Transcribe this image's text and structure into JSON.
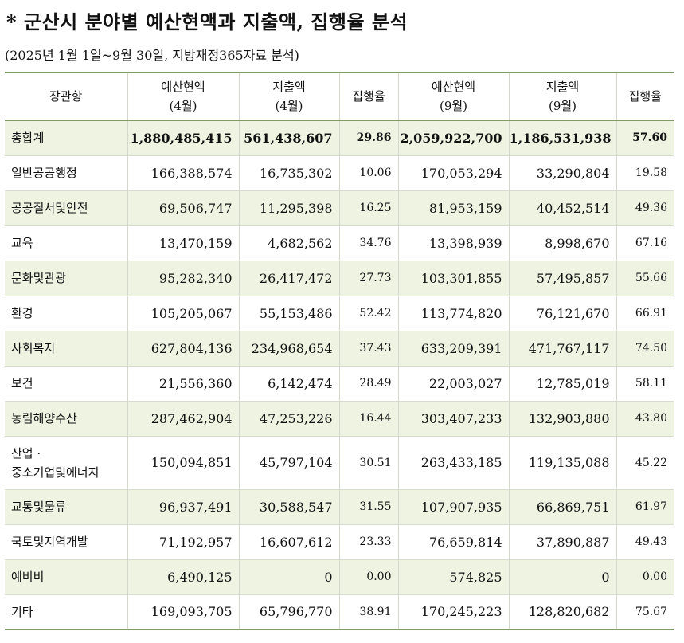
{
  "title": "* 군산시 분야별 예산현액과 지출액, 집행율 분석",
  "subtitle": "(2025년 1월 1일~9월 30일, 지방재정365자료 분석)",
  "headers": [
    {
      "line1": "장관항",
      "line2": ""
    },
    {
      "line1": "예산현액",
      "line2": "(4월)"
    },
    {
      "line1": "지출액",
      "line2": "(4월)"
    },
    {
      "line1": "집행율",
      "line2": ""
    },
    {
      "line1": "예산현액",
      "line2": "(9월)"
    },
    {
      "line1": "지출액",
      "line2": "(9월)"
    },
    {
      "line1": "집행율",
      "line2": ""
    }
  ],
  "rows": [
    {
      "category": "총합계",
      "budget_apr": "1,880,485,415",
      "spend_apr": "561,438,607",
      "rate_apr": "29.86",
      "budget_sep": "2,059,922,700",
      "spend_sep": "1,186,531,938",
      "rate_sep": "57.60"
    },
    {
      "category": "일반공공행정",
      "budget_apr": "166,388,574",
      "spend_apr": "16,735,302",
      "rate_apr": "10.06",
      "budget_sep": "170,053,294",
      "spend_sep": "33,290,804",
      "rate_sep": "19.58"
    },
    {
      "category": "공공질서및안전",
      "budget_apr": "69,506,747",
      "spend_apr": "11,295,398",
      "rate_apr": "16.25",
      "budget_sep": "81,953,159",
      "spend_sep": "40,452,514",
      "rate_sep": "49.36"
    },
    {
      "category": "교육",
      "budget_apr": "13,470,159",
      "spend_apr": "4,682,562",
      "rate_apr": "34.76",
      "budget_sep": "13,398,939",
      "spend_sep": "8,998,670",
      "rate_sep": "67.16"
    },
    {
      "category": "문화및관광",
      "budget_apr": "95,282,340",
      "spend_apr": "26,417,472",
      "rate_apr": "27.73",
      "budget_sep": "103,301,855",
      "spend_sep": "57,495,857",
      "rate_sep": "55.66"
    },
    {
      "category": "환경",
      "budget_apr": "105,205,067",
      "spend_apr": "55,153,486",
      "rate_apr": "52.42",
      "budget_sep": "113,774,820",
      "spend_sep": "76,121,670",
      "rate_sep": "66.91"
    },
    {
      "category": "사회복지",
      "budget_apr": "627,804,136",
      "spend_apr": "234,968,654",
      "rate_apr": "37.43",
      "budget_sep": "633,209,391",
      "spend_sep": "471,767,117",
      "rate_sep": "74.50"
    },
    {
      "category": "보건",
      "budget_apr": "21,556,360",
      "spend_apr": "6,142,474",
      "rate_apr": "28.49",
      "budget_sep": "22,003,027",
      "spend_sep": "12,785,019",
      "rate_sep": "58.11"
    },
    {
      "category": "농림해양수산",
      "budget_apr": "287,462,904",
      "spend_apr": "47,253,226",
      "rate_apr": "16.44",
      "budget_sep": "303,407,233",
      "spend_sep": "132,903,880",
      "rate_sep": "43.80"
    },
    {
      "category_line1": "산업 ·",
      "category_line2": "중소기업및에너지",
      "budget_apr": "150,094,851",
      "spend_apr": "45,797,104",
      "rate_apr": "30.51",
      "budget_sep": "263,433,185",
      "spend_sep": "119,135,088",
      "rate_sep": "45.22"
    },
    {
      "category": "교통및물류",
      "budget_apr": "96,937,491",
      "spend_apr": "30,588,547",
      "rate_apr": "31.55",
      "budget_sep": "107,907,935",
      "spend_sep": "66,869,751",
      "rate_sep": "61.97"
    },
    {
      "category": "국토및지역개발",
      "budget_apr": "71,192,957",
      "spend_apr": "16,607,612",
      "rate_apr": "23.33",
      "budget_sep": "76,659,814",
      "spend_sep": "37,890,887",
      "rate_sep": "49.43"
    },
    {
      "category": "예비비",
      "budget_apr": "6,490,125",
      "spend_apr": "0",
      "rate_apr": "0.00",
      "budget_sep": "574,825",
      "spend_sep": "0",
      "rate_sep": "0.00"
    },
    {
      "category": "기타",
      "budget_apr": "169,093,705",
      "spend_apr": "65,796,770",
      "rate_apr": "38.91",
      "budget_sep": "170,245,223",
      "spend_sep": "128,820,682",
      "rate_sep": "75.67"
    }
  ]
}
